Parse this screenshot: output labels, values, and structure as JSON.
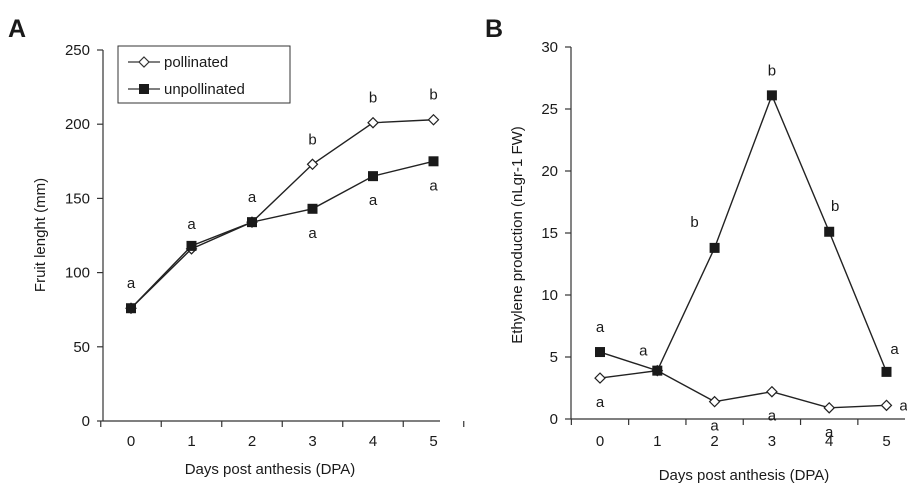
{
  "chart_data": [
    {
      "type": "line",
      "panel_label": "A",
      "x": [
        0,
        1,
        2,
        3,
        4,
        5
      ],
      "xlabel": "Days post anthesis (DPA)",
      "ylabel": "Fruit lenght (mm)",
      "ylim": [
        0,
        250
      ],
      "yticks": [
        0,
        50,
        100,
        150,
        200,
        250
      ],
      "grid": false,
      "legend": "top-left",
      "series": [
        {
          "name": "pollinated",
          "marker": "open-diamond",
          "values": [
            76,
            116,
            134,
            173,
            201,
            203
          ],
          "labels": [
            "a",
            "a",
            "a",
            "b",
            "b",
            "b"
          ],
          "label_position": "above"
        },
        {
          "name": "unpollinated",
          "marker": "filled-square",
          "values": [
            76,
            118,
            134,
            143,
            165,
            175
          ],
          "labels": [
            "",
            "",
            "",
            "a",
            "a",
            "a"
          ],
          "label_position": "below"
        }
      ]
    },
    {
      "type": "line",
      "panel_label": "B",
      "x": [
        0,
        1,
        2,
        3,
        4,
        5
      ],
      "xlabel": "Days post anthesis (DPA)",
      "ylabel": "Ethylene production (nLgr-1 FW)",
      "ylim": [
        0,
        30
      ],
      "yticks": [
        0,
        5,
        10,
        15,
        20,
        25,
        30
      ],
      "grid": false,
      "legend": "none",
      "series": [
        {
          "name": "pollinated",
          "marker": "open-diamond",
          "values": [
            3.3,
            3.9,
            1.4,
            2.2,
            0.9,
            1.1
          ],
          "labels": [
            "a",
            "",
            "a",
            "a",
            "a",
            "a"
          ],
          "label_position": "below"
        },
        {
          "name": "unpollinated",
          "marker": "filled-square",
          "values": [
            5.4,
            3.9,
            13.8,
            26.1,
            15.1,
            3.8
          ],
          "labels": [
            "a",
            "a",
            "b",
            "b",
            "b",
            "a"
          ],
          "label_position": "above"
        }
      ]
    }
  ]
}
